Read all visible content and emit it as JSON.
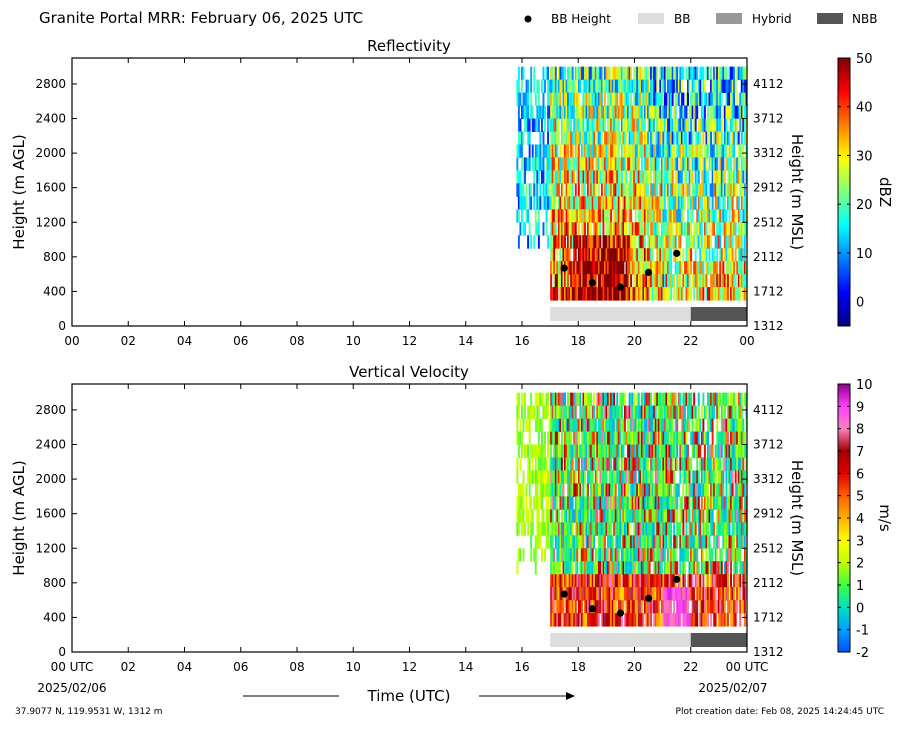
{
  "header": {
    "title": "Granite Portal MRR:  February 06, 2025 UTC",
    "legend": [
      {
        "label": "BB Height",
        "kind": "dot",
        "color": "#000000"
      },
      {
        "label": "BB",
        "kind": "patch",
        "color": "#dddddd"
      },
      {
        "label": "Hybrid",
        "kind": "patch",
        "color": "#999999"
      },
      {
        "label": "NBB",
        "kind": "patch",
        "color": "#555555"
      }
    ]
  },
  "footer": {
    "location": "37.9077 N, 119.9531 W, 1312 m",
    "creation": "Plot creation date: Feb 08, 2025 14:24:45 UTC",
    "xlabel": "Time (UTC)",
    "start_date": "2025/02/06",
    "end_date": "2025/02/07"
  },
  "chart_data": [
    {
      "type": "heatmap",
      "title": "Reflectivity",
      "ylabel": "Height (m AGL)",
      "y2label": "Height (m MSL)",
      "x_ticks": [
        "00",
        "02",
        "04",
        "06",
        "08",
        "10",
        "12",
        "14",
        "16",
        "18",
        "20",
        "22",
        "00"
      ],
      "xlim": [
        0,
        24
      ],
      "ylim": [
        0,
        3100
      ],
      "y_ticks": [
        0,
        400,
        800,
        1200,
        1600,
        2000,
        2400,
        2800
      ],
      "y2_ticks": [
        1312,
        1712,
        2112,
        2512,
        2912,
        3312,
        3712,
        4112
      ],
      "colorbar": {
        "label": "dBZ",
        "ticks": [
          0,
          10,
          20,
          30,
          40,
          50
        ],
        "range": [
          -5,
          50
        ],
        "colors": [
          "#00007f",
          "#0000ff",
          "#007fff",
          "#00ffff",
          "#7fff7f",
          "#ffff00",
          "#ff7f00",
          "#ff0000",
          "#7f0000"
        ]
      },
      "data_coverage": {
        "start_hour": 15.8,
        "end_hour": 24,
        "min_height": 300,
        "max_height": 3000
      },
      "bb_heights": [
        {
          "hour": 17.5,
          "height": 670
        },
        {
          "hour": 18.5,
          "height": 500
        },
        {
          "hour": 19.5,
          "height": 450
        },
        {
          "hour": 20.5,
          "height": 620
        },
        {
          "hour": 21.5,
          "height": 840
        }
      ],
      "bb_types": [
        {
          "start": 17,
          "end": 22,
          "type": "BB"
        },
        {
          "start": 22,
          "end": 24,
          "type": "NBB"
        }
      ]
    },
    {
      "type": "heatmap",
      "title": "Vertical Velocity",
      "ylabel": "Height (m AGL)",
      "y2label": "Height (m MSL)",
      "x_ticks": [
        "00 UTC",
        "02",
        "04",
        "06",
        "08",
        "10",
        "12",
        "14",
        "16",
        "18",
        "20",
        "22",
        "00 UTC"
      ],
      "xlim": [
        0,
        24
      ],
      "ylim": [
        0,
        3100
      ],
      "y_ticks": [
        0,
        400,
        800,
        1200,
        1600,
        2000,
        2400,
        2800
      ],
      "y2_ticks": [
        1312,
        1712,
        2112,
        2512,
        2912,
        3312,
        3712,
        4112
      ],
      "colorbar": {
        "label": "m/s",
        "ticks": [
          -2,
          -1,
          0,
          1,
          2,
          3,
          4,
          5,
          6,
          7,
          8,
          9,
          10
        ],
        "range": [
          -2,
          10
        ],
        "colors": [
          "#0050ff",
          "#00a0ff",
          "#00e0c0",
          "#40ff40",
          "#c0ff00",
          "#ffff00",
          "#ffb000",
          "#ff6000",
          "#e00000",
          "#a00000",
          "#ff80c0",
          "#ff40ff",
          "#900090"
        ]
      },
      "data_coverage": {
        "start_hour": 15.8,
        "end_hour": 24,
        "min_height": 300,
        "max_height": 3000
      },
      "bb_heights": [
        {
          "hour": 17.5,
          "height": 670
        },
        {
          "hour": 18.5,
          "height": 500
        },
        {
          "hour": 19.5,
          "height": 450
        },
        {
          "hour": 20.5,
          "height": 620
        },
        {
          "hour": 21.5,
          "height": 840
        }
      ],
      "bb_types": [
        {
          "start": 17,
          "end": 22,
          "type": "BB"
        },
        {
          "start": 22,
          "end": 24,
          "type": "NBB"
        }
      ]
    }
  ]
}
